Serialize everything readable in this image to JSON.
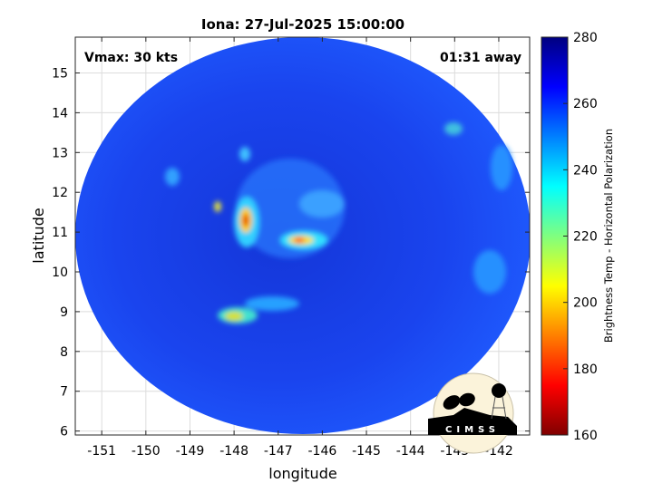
{
  "chart_data": {
    "type": "heatmap",
    "title": "Iona: 27-Jul-2025 15:00:00",
    "xlabel": "longitude",
    "ylabel": "latitude",
    "xlim": [
      -151.6,
      -141.3
    ],
    "ylim": [
      5.9,
      15.9
    ],
    "xticks": [
      -151,
      -150,
      -149,
      -148,
      -147,
      -146,
      -145,
      -144,
      -143,
      -142
    ],
    "xtick_labels": [
      "-151",
      "-150",
      "-149",
      "-148",
      "-147",
      "-146",
      "-145",
      "-144",
      "-143",
      "-142"
    ],
    "yticks": [
      6,
      7,
      8,
      9,
      10,
      11,
      12,
      13,
      14,
      15
    ],
    "ytick_labels": [
      "6",
      "7",
      "8",
      "9",
      "10",
      "11",
      "12",
      "13",
      "14",
      "15"
    ],
    "grid": true,
    "colormap": "jet",
    "colorbar": {
      "label": "Brightness Temp - Horizontal Polarization",
      "range": [
        160,
        280
      ],
      "ticks": [
        160,
        180,
        200,
        220,
        240,
        260,
        280
      ],
      "tick_labels": [
        "160",
        "180",
        "200",
        "220",
        "240",
        "260",
        "280"
      ]
    },
    "annotations": {
      "left": "Vmax: 30 kts",
      "right": "01:31 away"
    }
  },
  "logo": {
    "text": "CIMSS"
  },
  "colors": {
    "swath_base": "#1a3cf0",
    "axis": "#262626",
    "grid": "#dcdcdc"
  }
}
